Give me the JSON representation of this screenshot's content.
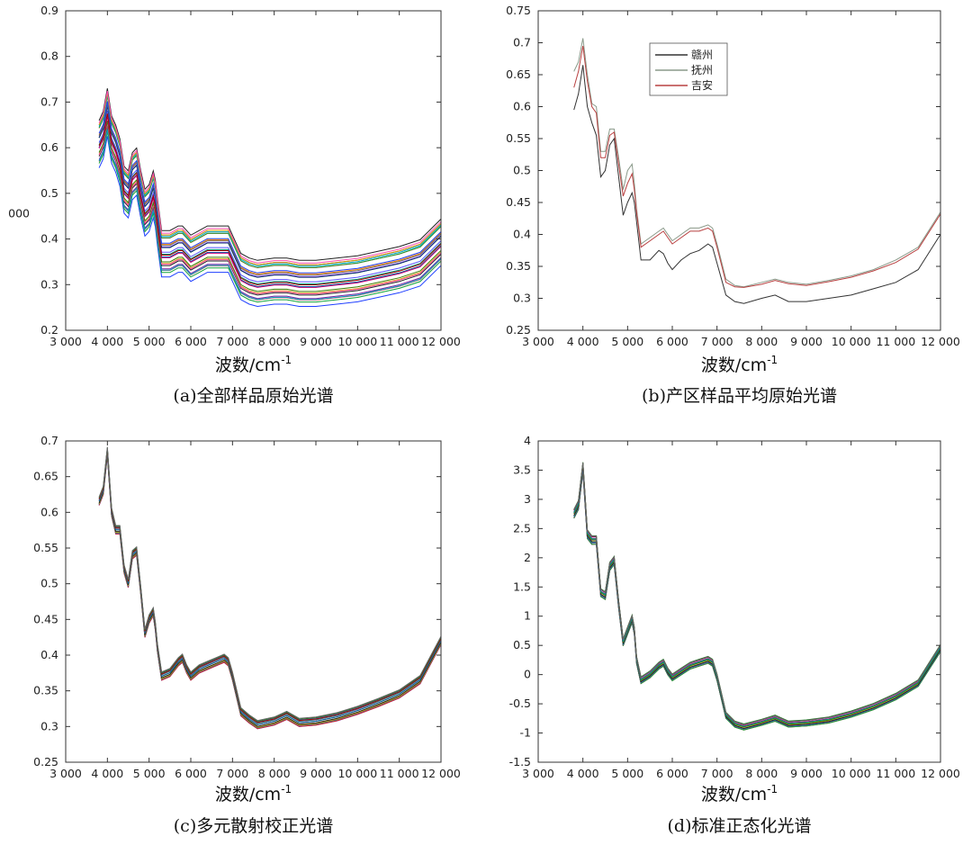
{
  "chart_data": [
    {
      "type": "line",
      "caption": "(a)全部样品原始光谱",
      "xlabel_main": "波数/cm",
      "xlabel_sup": "-1",
      "xlim": [
        3000,
        12000
      ],
      "ylim": [
        0.2,
        0.9
      ],
      "xticks": [
        3000,
        4000,
        5000,
        6000,
        7000,
        8000,
        9000,
        10000,
        11000,
        12000
      ],
      "xtick_labels": [
        "3 000",
        "4 000",
        "5 000",
        "6 000",
        "7 000",
        "8 000",
        "9 000",
        "10 000",
        "11 000",
        "12 000"
      ],
      "yticks": [
        0.2,
        0.3,
        0.4,
        0.5,
        0.6,
        0.7,
        0.8,
        0.9
      ],
      "ytick_labels": [
        "0.2",
        "0.3",
        "0.4",
        "0.5",
        "0.6",
        "0.7",
        "0.8",
        "0.9"
      ],
      "extra_label": "000",
      "base_curve": {
        "x": [
          3800,
          3900,
          4000,
          4100,
          4200,
          4300,
          4400,
          4500,
          4600,
          4700,
          4800,
          4900,
          5000,
          5100,
          5150,
          5200,
          5300,
          5500,
          5700,
          5800,
          5900,
          6000,
          6200,
          6400,
          6600,
          6800,
          6900,
          7000,
          7200,
          7400,
          7600,
          8000,
          8300,
          8600,
          9000,
          9500,
          10000,
          10500,
          11000,
          11500,
          12000
        ],
        "y": [
          0.61,
          0.63,
          0.68,
          0.62,
          0.6,
          0.57,
          0.51,
          0.5,
          0.54,
          0.55,
          0.5,
          0.46,
          0.47,
          0.5,
          0.48,
          0.44,
          0.37,
          0.37,
          0.38,
          0.38,
          0.37,
          0.36,
          0.37,
          0.38,
          0.38,
          0.38,
          0.38,
          0.36,
          0.32,
          0.31,
          0.305,
          0.31,
          0.31,
          0.305,
          0.305,
          0.31,
          0.315,
          0.325,
          0.335,
          0.35,
          0.395
        ]
      },
      "spread": {
        "low": -0.05,
        "high": 0.05
      },
      "sample_count": 28,
      "palette": [
        "#1f3fff",
        "#e32020",
        "#15a33a",
        "#7a1fa2",
        "#00a8c8",
        "#d6a200",
        "#222222",
        "#ff4fb0",
        "#3d7a00",
        "#8a4a00",
        "#0066aa",
        "#cc0077",
        "#009977",
        "#5555ff",
        "#aa0000",
        "#227722",
        "#b05fff",
        "#ff8800",
        "#003366",
        "#666666"
      ],
      "legend": null
    },
    {
      "type": "line",
      "caption": "(b)产区样品平均原始光谱",
      "xlabel_main": "波数/cm",
      "xlabel_sup": "-1",
      "xlim": [
        3000,
        12000
      ],
      "ylim": [
        0.25,
        0.75
      ],
      "xticks": [
        3000,
        4000,
        5000,
        6000,
        7000,
        8000,
        9000,
        10000,
        11000,
        12000
      ],
      "xtick_labels": [
        "3 000",
        "4 000",
        "5 000",
        "6 000",
        "7 000",
        "8 000",
        "9 000",
        "10 000",
        "11 000",
        "12 000"
      ],
      "yticks": [
        0.25,
        0.3,
        0.35,
        0.4,
        0.45,
        0.5,
        0.55,
        0.6,
        0.65,
        0.7,
        0.75
      ],
      "ytick_labels": [
        "0.25",
        "0.3",
        "0.35",
        "0.4",
        "0.45",
        "0.5",
        "0.55",
        "0.6",
        "0.65",
        "0.7",
        "0.75"
      ],
      "series": [
        {
          "name": "赣州",
          "color": "#333333",
          "x": [
            3800,
            3900,
            4000,
            4100,
            4200,
            4300,
            4400,
            4500,
            4600,
            4700,
            4800,
            4900,
            5000,
            5100,
            5150,
            5200,
            5300,
            5500,
            5700,
            5800,
            5900,
            6000,
            6200,
            6400,
            6600,
            6800,
            6900,
            7000,
            7200,
            7400,
            7600,
            8000,
            8300,
            8600,
            9000,
            9500,
            10000,
            10500,
            11000,
            11500,
            12000
          ],
          "y": [
            0.595,
            0.62,
            0.665,
            0.6,
            0.575,
            0.555,
            0.49,
            0.5,
            0.54,
            0.55,
            0.49,
            0.43,
            0.45,
            0.465,
            0.45,
            0.42,
            0.36,
            0.36,
            0.375,
            0.37,
            0.355,
            0.345,
            0.36,
            0.37,
            0.375,
            0.385,
            0.38,
            0.355,
            0.305,
            0.295,
            0.292,
            0.3,
            0.305,
            0.295,
            0.295,
            0.3,
            0.305,
            0.315,
            0.325,
            0.345,
            0.4
          ]
        },
        {
          "name": "抚州",
          "color": "#8a9a8a",
          "x": [
            3800,
            3900,
            4000,
            4100,
            4200,
            4300,
            4400,
            4500,
            4600,
            4700,
            4800,
            4900,
            5000,
            5100,
            5150,
            5200,
            5300,
            5500,
            5700,
            5800,
            5900,
            6000,
            6200,
            6400,
            6600,
            6800,
            6900,
            7000,
            7200,
            7400,
            7600,
            8000,
            8300,
            8600,
            9000,
            9500,
            10000,
            10500,
            11000,
            11500,
            12000
          ],
          "y": [
            0.655,
            0.67,
            0.707,
            0.65,
            0.605,
            0.6,
            0.53,
            0.53,
            0.565,
            0.565,
            0.52,
            0.47,
            0.5,
            0.51,
            0.48,
            0.44,
            0.385,
            0.395,
            0.405,
            0.41,
            0.4,
            0.39,
            0.4,
            0.41,
            0.41,
            0.415,
            0.41,
            0.385,
            0.33,
            0.32,
            0.318,
            0.325,
            0.33,
            0.325,
            0.322,
            0.328,
            0.335,
            0.345,
            0.36,
            0.38,
            0.435
          ]
        },
        {
          "name": "吉安",
          "color": "#b84040",
          "x": [
            3800,
            3900,
            4000,
            4100,
            4200,
            4300,
            4400,
            4500,
            4600,
            4700,
            4800,
            4900,
            5000,
            5100,
            5150,
            5200,
            5300,
            5500,
            5700,
            5800,
            5900,
            6000,
            6200,
            6400,
            6600,
            6800,
            6900,
            7000,
            7200,
            7400,
            7600,
            8000,
            8300,
            8600,
            9000,
            9500,
            10000,
            10500,
            11000,
            11500,
            12000
          ],
          "y": [
            0.63,
            0.655,
            0.695,
            0.64,
            0.6,
            0.59,
            0.52,
            0.52,
            0.555,
            0.56,
            0.51,
            0.46,
            0.48,
            0.495,
            0.47,
            0.435,
            0.38,
            0.39,
            0.4,
            0.405,
            0.395,
            0.385,
            0.395,
            0.405,
            0.405,
            0.41,
            0.405,
            0.38,
            0.325,
            0.318,
            0.317,
            0.322,
            0.328,
            0.323,
            0.32,
            0.326,
            0.333,
            0.343,
            0.356,
            0.377,
            0.432
          ]
        }
      ],
      "legend": {
        "position": "top-center",
        "entries": [
          "赣州",
          "抚州",
          "吉安"
        ]
      }
    },
    {
      "type": "line",
      "caption": "(c)多元散射校正光谱",
      "xlabel_main": "波数/cm",
      "xlabel_sup": "-1",
      "xlim": [
        3000,
        12000
      ],
      "ylim": [
        0.25,
        0.7
      ],
      "xticks": [
        3000,
        4000,
        5000,
        6000,
        7000,
        8000,
        9000,
        10000,
        11000,
        12000
      ],
      "xtick_labels": [
        "3 000",
        "4 000",
        "5 000",
        "6 000",
        "7 000",
        "8 000",
        "9 000",
        "10 000",
        "11 000",
        "12 000"
      ],
      "yticks": [
        0.25,
        0.3,
        0.35,
        0.4,
        0.45,
        0.5,
        0.55,
        0.6,
        0.65,
        0.7
      ],
      "ytick_labels": [
        "0.25",
        "0.3",
        "0.35",
        "0.4",
        "0.45",
        "0.5",
        "0.55",
        "0.6",
        "0.65",
        "0.7"
      ],
      "base_curve": {
        "x": [
          3800,
          3900,
          4000,
          4100,
          4200,
          4300,
          4400,
          4500,
          4600,
          4700,
          4800,
          4900,
          5000,
          5100,
          5150,
          5200,
          5300,
          5500,
          5700,
          5800,
          5900,
          6000,
          6200,
          6400,
          6600,
          6800,
          6900,
          7000,
          7200,
          7400,
          7600,
          8000,
          8300,
          8600,
          9000,
          9500,
          10000,
          10500,
          11000,
          11500,
          12000
        ],
        "y": [
          0.615,
          0.63,
          0.685,
          0.6,
          0.575,
          0.575,
          0.52,
          0.5,
          0.54,
          0.545,
          0.49,
          0.43,
          0.45,
          0.46,
          0.44,
          0.41,
          0.37,
          0.375,
          0.39,
          0.395,
          0.38,
          0.37,
          0.38,
          0.385,
          0.39,
          0.395,
          0.39,
          0.37,
          0.32,
          0.31,
          0.302,
          0.307,
          0.315,
          0.305,
          0.307,
          0.313,
          0.322,
          0.333,
          0.345,
          0.365,
          0.42
        ]
      },
      "spread": {
        "low": -0.006,
        "high": 0.006
      },
      "sample_count": 16,
      "palette": [
        "#1f3fff",
        "#e32020",
        "#15a33a",
        "#7a1fa2",
        "#00a8c8",
        "#d6a200",
        "#222222",
        "#ff4fb0",
        "#3d7a00",
        "#0066aa",
        "#cc0077",
        "#009977",
        "#5555ff",
        "#aa0000",
        "#227722",
        "#666666"
      ],
      "legend": null
    },
    {
      "type": "line",
      "caption": "(d)标准正态化光谱",
      "xlabel_main": "波数/cm",
      "xlabel_sup": "-1",
      "xlim": [
        3000,
        12000
      ],
      "ylim": [
        -1.5,
        4
      ],
      "xticks": [
        3000,
        4000,
        5000,
        6000,
        7000,
        8000,
        9000,
        10000,
        11000,
        12000
      ],
      "xtick_labels": [
        "3 000",
        "4 000",
        "5 000",
        "6 000",
        "7 000",
        "8 000",
        "9 000",
        "10 000",
        "11 000",
        "12 000"
      ],
      "yticks": [
        -1.5,
        -1,
        -0.5,
        0,
        0.5,
        1,
        1.5,
        2,
        2.5,
        3,
        3.5,
        4
      ],
      "ytick_labels": [
        "-1.5",
        "-1",
        "-0.5",
        "0",
        "0.5",
        "1",
        "1.5",
        "2",
        "2.5",
        "3",
        "3.5",
        "4"
      ],
      "base_curve": {
        "x": [
          3800,
          3900,
          4000,
          4100,
          4200,
          4300,
          4400,
          4500,
          4600,
          4700,
          4800,
          4900,
          5000,
          5100,
          5150,
          5200,
          5300,
          5500,
          5700,
          5800,
          5900,
          6000,
          6200,
          6400,
          6600,
          6800,
          6900,
          7000,
          7200,
          7400,
          7600,
          8000,
          8300,
          8600,
          9000,
          9500,
          10000,
          10500,
          11000,
          11500,
          12000
        ],
        "y": [
          2.75,
          2.9,
          3.55,
          2.4,
          2.3,
          2.3,
          1.4,
          1.35,
          1.85,
          1.95,
          1.2,
          0.55,
          0.75,
          0.95,
          0.75,
          0.25,
          -0.1,
          0.0,
          0.15,
          0.2,
          0.05,
          -0.05,
          0.05,
          0.15,
          0.2,
          0.25,
          0.2,
          -0.05,
          -0.7,
          -0.85,
          -0.9,
          -0.82,
          -0.75,
          -0.85,
          -0.83,
          -0.78,
          -0.68,
          -0.55,
          -0.38,
          -0.15,
          0.45
        ]
      },
      "spread": {
        "low": -0.08,
        "high": 0.08
      },
      "sample_count": 16,
      "palette": [
        "#1f3fff",
        "#e32020",
        "#15a33a",
        "#7a1fa2",
        "#00a8c8",
        "#d6a200",
        "#222222",
        "#ff4fb0",
        "#3d7a00",
        "#0066aa",
        "#cc0077",
        "#009977",
        "#5555ff",
        "#aa0000",
        "#227722",
        "#666666"
      ],
      "legend": null
    }
  ]
}
